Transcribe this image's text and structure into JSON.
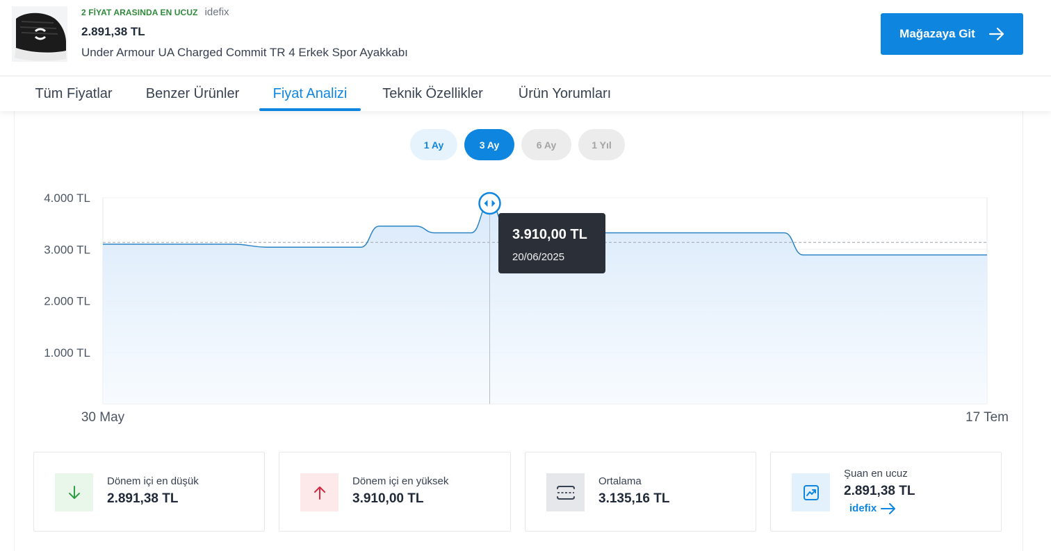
{
  "header": {
    "badge": "2 FİYAT ARASINDA EN UCUZ",
    "store": "idefix",
    "price": "2.891,38 TL",
    "title": "Under Armour UA Charged Commit TR 4 Erkek Spor Ayakkabı",
    "store_button": "Mağazaya Git"
  },
  "tabs": [
    {
      "label": "Tüm Fiyatlar",
      "active": false
    },
    {
      "label": "Benzer Ürünler",
      "active": false
    },
    {
      "label": "Fiyat Analizi",
      "active": true
    },
    {
      "label": "Teknik Özellikler",
      "active": false
    },
    {
      "label": "Ürün Yorumları",
      "active": false
    }
  ],
  "periods": [
    {
      "label": "1 Ay",
      "state": "available"
    },
    {
      "label": "3 Ay",
      "state": "selected"
    },
    {
      "label": "6 Ay",
      "state": "disabled"
    },
    {
      "label": "1 Yıl",
      "state": "disabled"
    }
  ],
  "chart_data": {
    "type": "area",
    "y_ticks": [
      "4.000 TL",
      "3.000 TL",
      "2.000 TL",
      "1.000 TL"
    ],
    "ylim": [
      0,
      4000
    ],
    "x_start_label": "30 May",
    "x_end_label": "17 Tem",
    "x": [
      "2025-05-30",
      "2025-06-06",
      "2025-06-08",
      "2025-06-13",
      "2025-06-14",
      "2025-06-16",
      "2025-06-17",
      "2025-06-19",
      "2025-06-20",
      "2025-06-21",
      "2025-07-06",
      "2025-07-07",
      "2025-07-17"
    ],
    "values": [
      3100,
      3100,
      3040,
      3040,
      3450,
      3450,
      3320,
      3320,
      3910,
      3320,
      3320,
      2891.38,
      2891.38
    ],
    "average": 3135.16,
    "grid": true,
    "colors": {
      "line": "#2a83c4",
      "fill": "#dbeafb",
      "average": "#9ca3af"
    },
    "tooltip": {
      "price": "3.910,00 TL",
      "date": "20/06/2025"
    }
  },
  "stats": [
    {
      "label": "Dönem içi en düşük",
      "value": "2.891,38 TL",
      "icon": "arrow-down-icon",
      "color": "#2f9e44",
      "bg": "#e8f7ea"
    },
    {
      "label": "Dönem içi en yüksek",
      "value": "3.910,00 TL",
      "icon": "arrow-up-icon",
      "color": "#d6293e",
      "bg": "#fde8ea"
    },
    {
      "label": "Ortalama",
      "value": "3.135,16 TL",
      "icon": "average-icon",
      "color": "#374151",
      "bg": "#e5e7eb"
    },
    {
      "label": "Şuan en ucuz",
      "value": "2.891,38 TL",
      "store": "idefix",
      "icon": "trend-up-icon",
      "color": "#0e86e0",
      "bg": "#e3f1fc"
    }
  ]
}
